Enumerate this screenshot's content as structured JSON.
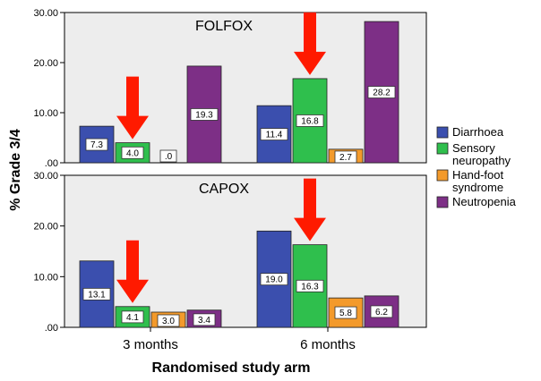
{
  "chart_data": {
    "type": "bar",
    "xlabel": "Randomised study arm",
    "ylabel": "% Grade 3/4",
    "categories": [
      "3 months",
      "6 months"
    ],
    "y_tick_labels": [
      ".00",
      "10.00",
      "20.00",
      "30.00"
    ],
    "ylim": [
      0,
      30
    ],
    "legend_position": "right",
    "legend": [
      "Diarrhoea",
      "Sensory neuropathy",
      "Hand-foot syndrome",
      "Neutropenia"
    ],
    "series_colors": [
      "#3b4fae",
      "#2fbf4d",
      "#f39a2b",
      "#7d2f86"
    ],
    "panels": [
      {
        "title": "FOLFOX",
        "series": [
          {
            "name": "Diarrhoea",
            "values": [
              7.3,
              11.4
            ],
            "labels": [
              "7.3",
              "11.4"
            ]
          },
          {
            "name": "Sensory neuropathy",
            "values": [
              4.0,
              16.8
            ],
            "labels": [
              "4.0",
              "16.8"
            ]
          },
          {
            "name": "Hand-foot syndrome",
            "values": [
              0,
              2.7
            ],
            "labels": [
              ".0",
              "2.7"
            ]
          },
          {
            "name": "Neutropenia",
            "values": [
              19.3,
              28.2
            ],
            "labels": [
              "19.3",
              "28.2"
            ]
          }
        ],
        "arrows_on": "Sensory neuropathy"
      },
      {
        "title": "CAPOX",
        "series": [
          {
            "name": "Diarrhoea",
            "values": [
              13.1,
              19.0
            ],
            "labels": [
              "13.1",
              "19.0"
            ]
          },
          {
            "name": "Sensory neuropathy",
            "values": [
              4.1,
              16.3
            ],
            "labels": [
              "4.1",
              "16.3"
            ]
          },
          {
            "name": "Hand-foot syndrome",
            "values": [
              3.0,
              5.8
            ],
            "labels": [
              "3.0",
              "5.8"
            ]
          },
          {
            "name": "Neutropenia",
            "values": [
              3.4,
              6.2
            ],
            "labels": [
              "3.4",
              "6.2"
            ]
          }
        ],
        "arrows_on": "Sensory neuropathy"
      }
    ],
    "colors": {
      "panel_background": "#ededed",
      "arrow": "#ff1a00"
    }
  }
}
